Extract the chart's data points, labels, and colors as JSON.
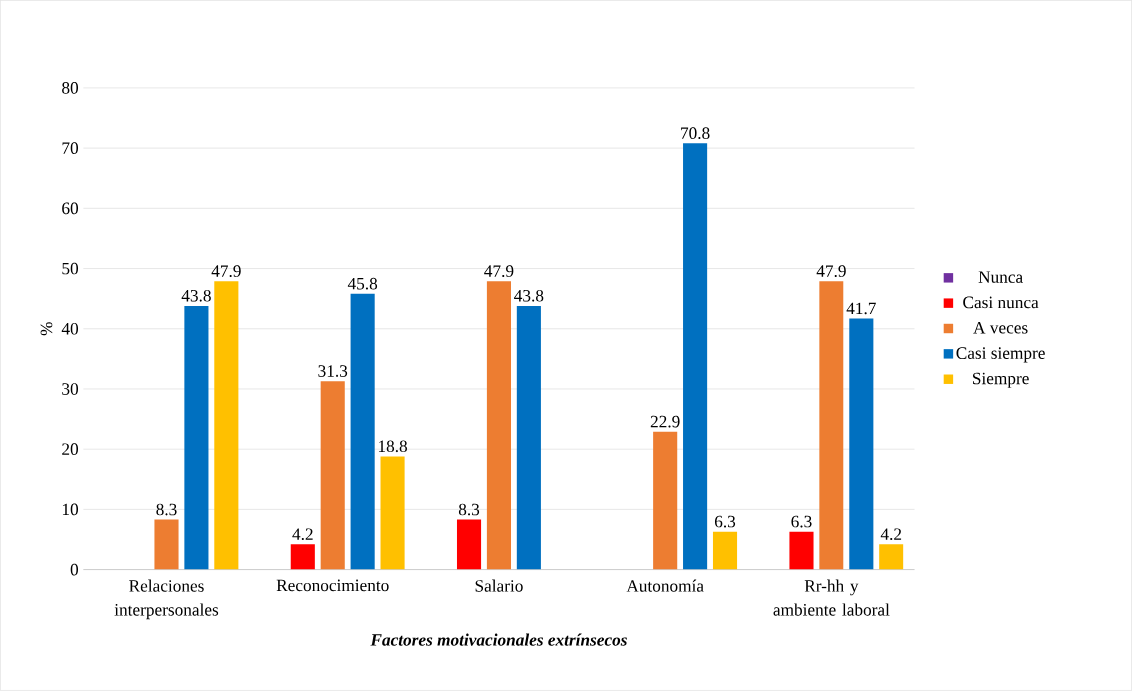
{
  "chart_data": {
    "type": "bar",
    "xlabel": "Factores motivacionales extrínsecos",
    "ylabel": "%",
    "categories": [
      "Relaciones interpersonales",
      "Reconocimiento",
      "Salario",
      "Autonomía",
      "Rr-hh y ambiente laboral"
    ],
    "series": [
      {
        "name": "Nunca",
        "color": "#7030a0",
        "values": [
          0,
          0,
          0,
          0,
          0
        ],
        "value_labels": [
          null,
          null,
          null,
          null,
          null
        ]
      },
      {
        "name": "Casi nunca",
        "color": "#ff0000",
        "values": [
          0,
          4.2,
          8.3,
          0,
          6.3
        ],
        "value_labels": [
          null,
          "4.2",
          "8.3",
          null,
          "6.3"
        ]
      },
      {
        "name": "A veces",
        "color": "#ed7d31",
        "values": [
          8.3,
          31.3,
          47.9,
          22.9,
          47.9
        ],
        "value_labels": [
          "8.3",
          "31.3",
          "47.9",
          "22.9",
          "47.9"
        ]
      },
      {
        "name": "Casi siempre",
        "color": "#0070c0",
        "values": [
          43.8,
          45.8,
          43.8,
          70.8,
          41.7
        ],
        "value_labels": [
          "43.8",
          "45.8",
          "43.8",
          "70.8",
          "41.7"
        ]
      },
      {
        "name": "Siempre",
        "color": "#ffc000",
        "values": [
          47.9,
          18.8,
          0,
          6.3,
          4.2
        ],
        "value_labels": [
          "47.9",
          "18.8",
          null,
          "6.3",
          "4.2"
        ]
      }
    ],
    "ylim": [
      0,
      80
    ],
    "yticks": [
      0,
      10,
      20,
      30,
      40,
      50,
      60,
      70,
      80
    ],
    "grid": "y",
    "legend": "right"
  }
}
